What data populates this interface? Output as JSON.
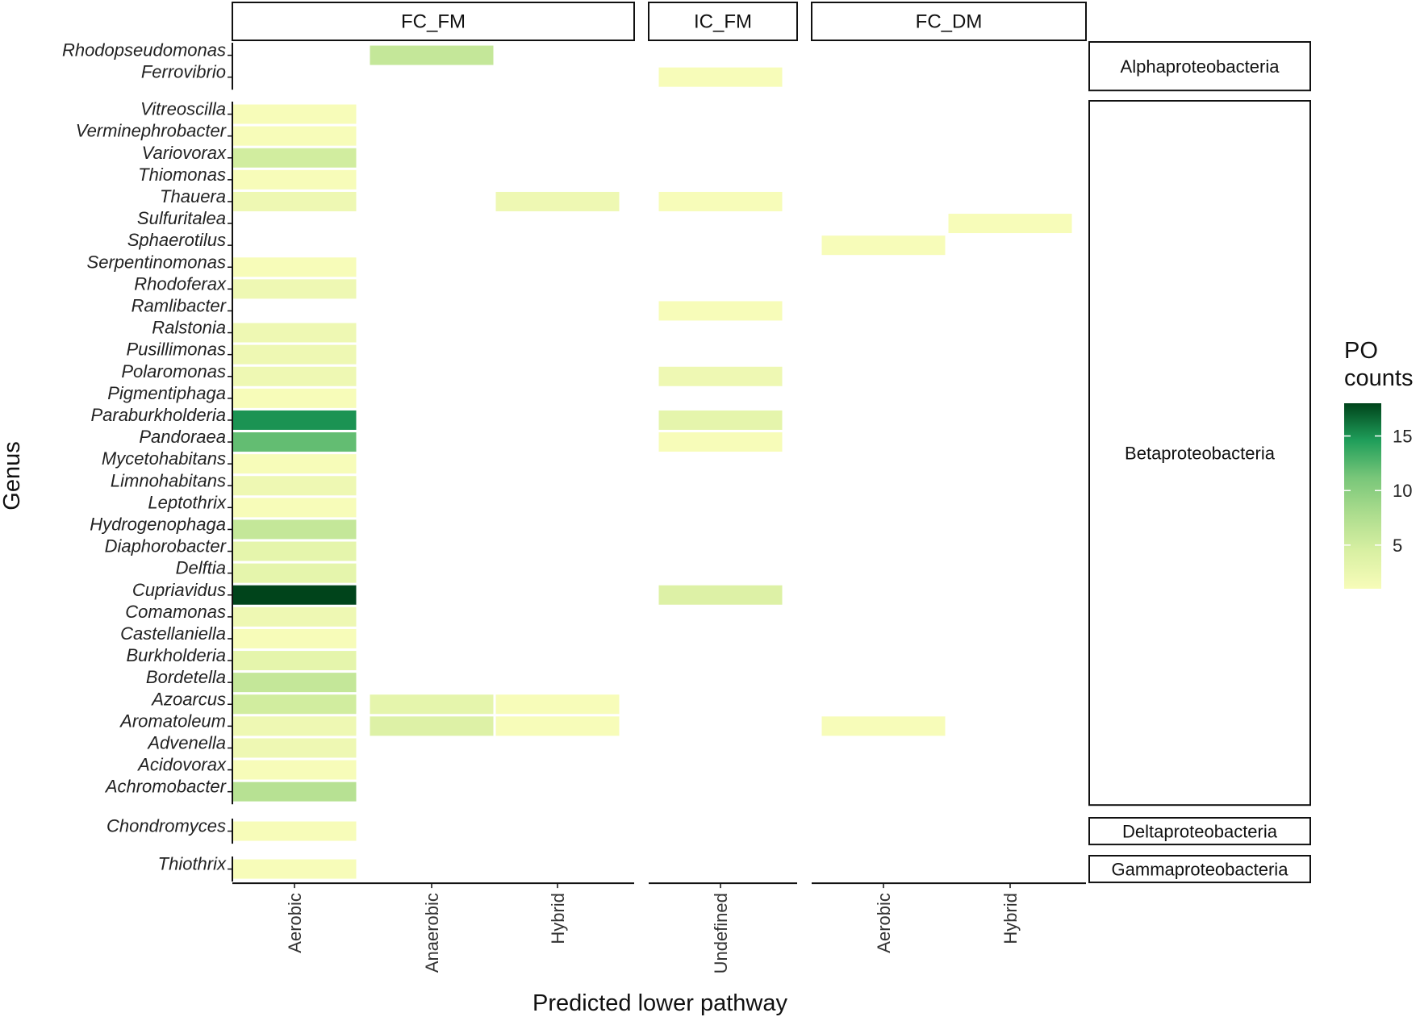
{
  "chart_data": {
    "type": "heatmap",
    "xlabel": "Predicted lower pathway",
    "ylabel": "Genus",
    "facets": [
      {
        "name": "FC_FM",
        "columns": [
          "Aerobic",
          "Anaerobic",
          "Hybrid"
        ]
      },
      {
        "name": "IC_FM",
        "columns": [
          "Undefined"
        ]
      },
      {
        "name": "FC_DM",
        "columns": [
          "Aerobic",
          "Hybrid"
        ]
      }
    ],
    "row_groups": [
      {
        "name": "Alphaproteobacteria",
        "genera": [
          "Rhodopseudomonas",
          "Ferrovibrio"
        ]
      },
      {
        "name": "Betaproteobacteria",
        "genera": [
          "Vitreoscilla",
          "Verminephrobacter",
          "Variovorax",
          "Thiomonas",
          "Thauera",
          "Sulfuritalea",
          "Sphaerotilus",
          "Serpentinomonas",
          "Rhodoferax",
          "Ramlibacter",
          "Ralstonia",
          "Pusillimonas",
          "Polaromonas",
          "Pigmentiphaga",
          "Paraburkholderia",
          "Pandoraea",
          "Mycetohabitans",
          "Limnohabitans",
          "Leptothrix",
          "Hydrogenophaga",
          "Diaphorobacter",
          "Delftia",
          "Cupriavidus",
          "Comamonas",
          "Castellaniella",
          "Burkholderia",
          "Bordetella",
          "Azoarcus",
          "Aromatoleum",
          "Advenella",
          "Acidovorax",
          "Achromobacter"
        ]
      },
      {
        "name": "Deltaproteobacteria",
        "genera": [
          "Chondromyces"
        ]
      },
      {
        "name": "Gammaproteobacteria",
        "genera": [
          "Thiothrix"
        ]
      }
    ],
    "cells": [
      {
        "genus": "Rhodopseudomonas",
        "facet": "FC_FM",
        "pathway": "Anaerobic",
        "value": 6
      },
      {
        "genus": "Ferrovibrio",
        "facet": "IC_FM",
        "pathway": "Undefined",
        "value": 1
      },
      {
        "genus": "Vitreoscilla",
        "facet": "FC_FM",
        "pathway": "Aerobic",
        "value": 1
      },
      {
        "genus": "Verminephrobacter",
        "facet": "FC_FM",
        "pathway": "Aerobic",
        "value": 1
      },
      {
        "genus": "Variovorax",
        "facet": "FC_FM",
        "pathway": "Aerobic",
        "value": 5
      },
      {
        "genus": "Thiomonas",
        "facet": "FC_FM",
        "pathway": "Aerobic",
        "value": 1
      },
      {
        "genus": "Thauera",
        "facet": "FC_FM",
        "pathway": "Aerobic",
        "value": 2
      },
      {
        "genus": "Thauera",
        "facet": "FC_FM",
        "pathway": "Hybrid",
        "value": 2
      },
      {
        "genus": "Thauera",
        "facet": "IC_FM",
        "pathway": "Undefined",
        "value": 1
      },
      {
        "genus": "Sulfuritalea",
        "facet": "FC_DM",
        "pathway": "Hybrid",
        "value": 1
      },
      {
        "genus": "Sphaerotilus",
        "facet": "FC_DM",
        "pathway": "Aerobic",
        "value": 1
      },
      {
        "genus": "Serpentinomonas",
        "facet": "FC_FM",
        "pathway": "Aerobic",
        "value": 1
      },
      {
        "genus": "Rhodoferax",
        "facet": "FC_FM",
        "pathway": "Aerobic",
        "value": 2
      },
      {
        "genus": "Ramlibacter",
        "facet": "IC_FM",
        "pathway": "Undefined",
        "value": 1
      },
      {
        "genus": "Ralstonia",
        "facet": "FC_FM",
        "pathway": "Aerobic",
        "value": 2
      },
      {
        "genus": "Pusillimonas",
        "facet": "FC_FM",
        "pathway": "Aerobic",
        "value": 2
      },
      {
        "genus": "Polaromonas",
        "facet": "FC_FM",
        "pathway": "Aerobic",
        "value": 2
      },
      {
        "genus": "Polaromonas",
        "facet": "IC_FM",
        "pathway": "Undefined",
        "value": 2
      },
      {
        "genus": "Pigmentiphaga",
        "facet": "FC_FM",
        "pathway": "Aerobic",
        "value": 1
      },
      {
        "genus": "Paraburkholderia",
        "facet": "FC_FM",
        "pathway": "Aerobic",
        "value": 15
      },
      {
        "genus": "Paraburkholderia",
        "facet": "IC_FM",
        "pathway": "Undefined",
        "value": 3
      },
      {
        "genus": "Pandoraea",
        "facet": "FC_FM",
        "pathway": "Aerobic",
        "value": 12
      },
      {
        "genus": "Pandoraea",
        "facet": "IC_FM",
        "pathway": "Undefined",
        "value": 1
      },
      {
        "genus": "Mycetohabitans",
        "facet": "FC_FM",
        "pathway": "Aerobic",
        "value": 1
      },
      {
        "genus": "Limnohabitans",
        "facet": "FC_FM",
        "pathway": "Aerobic",
        "value": 2
      },
      {
        "genus": "Leptothrix",
        "facet": "FC_FM",
        "pathway": "Aerobic",
        "value": 1
      },
      {
        "genus": "Hydrogenophaga",
        "facet": "FC_FM",
        "pathway": "Aerobic",
        "value": 6
      },
      {
        "genus": "Diaphorobacter",
        "facet": "FC_FM",
        "pathway": "Aerobic",
        "value": 3
      },
      {
        "genus": "Delftia",
        "facet": "FC_FM",
        "pathway": "Aerobic",
        "value": 3
      },
      {
        "genus": "Cupriavidus",
        "facet": "FC_FM",
        "pathway": "Aerobic",
        "value": 18
      },
      {
        "genus": "Cupriavidus",
        "facet": "IC_FM",
        "pathway": "Undefined",
        "value": 4
      },
      {
        "genus": "Comamonas",
        "facet": "FC_FM",
        "pathway": "Aerobic",
        "value": 2
      },
      {
        "genus": "Castellaniella",
        "facet": "FC_FM",
        "pathway": "Aerobic",
        "value": 1
      },
      {
        "genus": "Burkholderia",
        "facet": "FC_FM",
        "pathway": "Aerobic",
        "value": 3
      },
      {
        "genus": "Bordetella",
        "facet": "FC_FM",
        "pathway": "Aerobic",
        "value": 6
      },
      {
        "genus": "Azoarcus",
        "facet": "FC_FM",
        "pathway": "Aerobic",
        "value": 5
      },
      {
        "genus": "Azoarcus",
        "facet": "FC_FM",
        "pathway": "Anaerobic",
        "value": 3
      },
      {
        "genus": "Azoarcus",
        "facet": "FC_FM",
        "pathway": "Hybrid",
        "value": 1
      },
      {
        "genus": "Aromatoleum",
        "facet": "FC_FM",
        "pathway": "Aerobic",
        "value": 2
      },
      {
        "genus": "Aromatoleum",
        "facet": "FC_FM",
        "pathway": "Anaerobic",
        "value": 4
      },
      {
        "genus": "Aromatoleum",
        "facet": "FC_FM",
        "pathway": "Hybrid",
        "value": 1
      },
      {
        "genus": "Aromatoleum",
        "facet": "FC_DM",
        "pathway": "Aerobic",
        "value": 1
      },
      {
        "genus": "Advenella",
        "facet": "FC_FM",
        "pathway": "Aerobic",
        "value": 2
      },
      {
        "genus": "Acidovorax",
        "facet": "FC_FM",
        "pathway": "Aerobic",
        "value": 1
      },
      {
        "genus": "Achromobacter",
        "facet": "FC_FM",
        "pathway": "Aerobic",
        "value": 7
      },
      {
        "genus": "Chondromyces",
        "facet": "FC_FM",
        "pathway": "Aerobic",
        "value": 1
      },
      {
        "genus": "Thiothrix",
        "facet": "FC_FM",
        "pathway": "Aerobic",
        "value": 1
      }
    ],
    "legend": {
      "title_line1": "PO",
      "title_line2": "counts",
      "min": 1,
      "max": 18,
      "breaks": [
        5,
        10,
        15
      ]
    },
    "colors": {
      "low": "#f7fcb9",
      "mid1": "#d9f0a3",
      "mid2": "#addd8e",
      "mid3": "#78c679",
      "mid4": "#1f9e5a",
      "high": "#00441b"
    }
  }
}
